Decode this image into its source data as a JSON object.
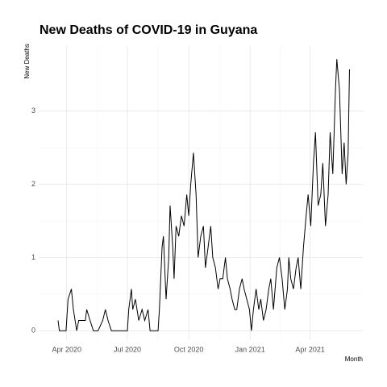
{
  "chart_data": {
    "type": "line",
    "title": "New Deaths of COVID-19 in Guyana",
    "x_label": "Month",
    "y_label": "New Deaths",
    "color": "#000000",
    "grid": true,
    "xlim": [
      49,
      535
    ],
    "ylim": [
      -0.13,
      3.89
    ],
    "xticks": [
      {
        "value": 91,
        "label": "Apr 2020"
      },
      {
        "value": 182,
        "label": "Jul 2020"
      },
      {
        "value": 274,
        "label": "Oct 2020"
      },
      {
        "value": 366,
        "label": "Jan 2021"
      },
      {
        "value": 456,
        "label": "Apr 2021"
      }
    ],
    "yticks": [
      0,
      1,
      2,
      3
    ],
    "x": [
      78,
      80,
      90,
      93,
      98,
      101,
      106,
      109,
      119,
      121,
      126,
      131,
      138,
      145,
      149,
      153,
      158,
      172,
      182,
      184,
      188,
      190,
      194,
      199,
      204,
      208,
      213,
      216,
      228,
      230,
      234,
      236,
      240,
      244,
      246,
      250,
      252,
      255,
      259,
      263,
      267,
      271,
      274,
      277,
      281,
      285,
      288,
      292,
      296,
      299,
      303,
      307,
      310,
      314,
      318,
      321,
      325,
      329,
      332,
      336,
      339,
      343,
      346,
      350,
      354,
      357,
      361,
      365,
      368,
      371,
      375,
      379,
      382,
      386,
      390,
      394,
      397,
      401,
      406,
      410,
      414,
      418,
      422,
      424,
      427,
      431,
      435,
      438,
      442,
      446,
      450,
      453,
      457,
      461,
      464,
      468,
      472,
      475,
      479,
      483,
      486,
      490,
      494,
      496,
      500,
      504,
      507,
      510,
      513,
      515
    ],
    "values": [
      0.14,
      0,
      0,
      0.43,
      0.57,
      0.29,
      0,
      0.14,
      0.14,
      0.29,
      0.14,
      0,
      0,
      0.14,
      0.29,
      0.14,
      0,
      0,
      0,
      0.29,
      0.57,
      0.29,
      0.43,
      0.14,
      0.29,
      0.14,
      0.29,
      0,
      0,
      0.29,
      1.14,
      1.29,
      0.43,
      1.0,
      1.71,
      1.14,
      0.71,
      1.43,
      1.29,
      1.57,
      1.43,
      1.86,
      1.57,
      2.0,
      2.43,
      1.86,
      1.0,
      1.29,
      1.43,
      0.86,
      1.14,
      1.43,
      1.0,
      0.86,
      0.57,
      0.71,
      0.71,
      1.0,
      0.71,
      0.57,
      0.43,
      0.29,
      0.29,
      0.57,
      0.71,
      0.57,
      0.43,
      0.29,
      0,
      0.29,
      0.57,
      0.29,
      0.43,
      0.14,
      0.29,
      0.57,
      0.71,
      0.29,
      0.86,
      1.0,
      0.71,
      0.29,
      0.57,
      1.0,
      0.71,
      0.57,
      0.86,
      1.0,
      0.57,
      1.14,
      1.57,
      1.86,
      1.43,
      2.29,
      2.71,
      1.71,
      1.86,
      2.29,
      1.43,
      1.86,
      2.71,
      2.14,
      3.29,
      3.71,
      3.29,
      2.14,
      2.57,
      2.0,
      2.43,
      3.57
    ]
  }
}
